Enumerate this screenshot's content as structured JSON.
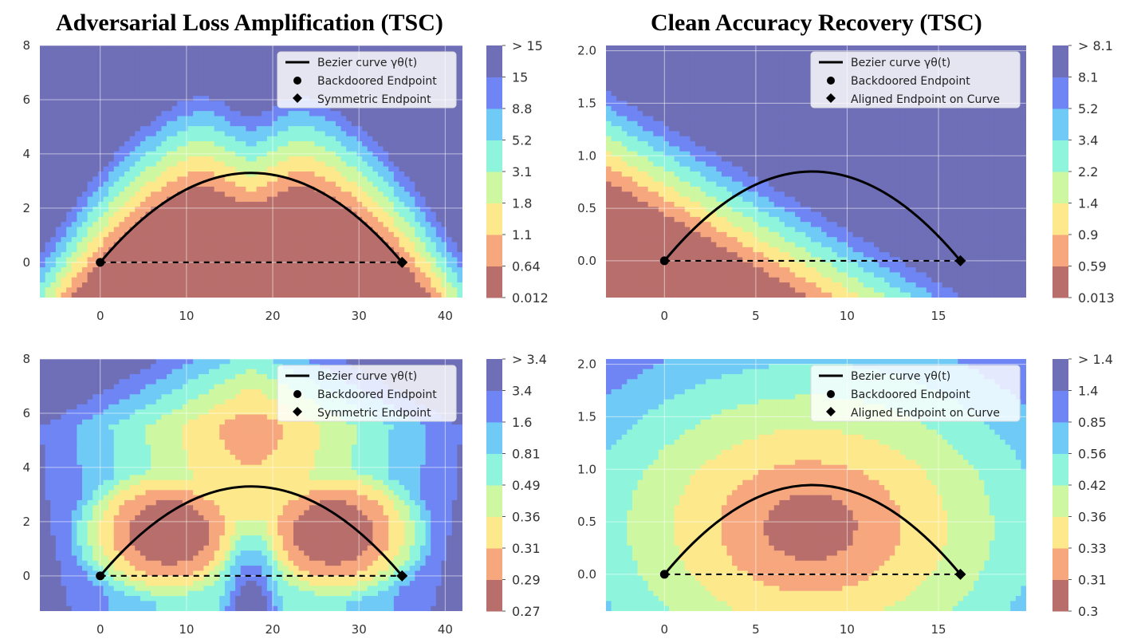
{
  "titles": [
    "Adversarial Loss Amplification (TSC)",
    "Clean Accuracy Recovery (TSC)"
  ],
  "chart_data": [
    {
      "type": "contour",
      "title": "Adversarial Loss Amplification (TSC)",
      "xlim": [
        -7,
        42
      ],
      "ylim": [
        -1.3,
        8
      ],
      "xticks": [
        0,
        10,
        20,
        30,
        40
      ],
      "yticks": [
        0,
        2,
        4,
        6,
        8
      ],
      "colorbar_levels": [
        "0.012",
        "0.64",
        "1.1",
        "1.8",
        "3.1",
        "5.2",
        "8.8",
        "15",
        "> 15"
      ],
      "legend": [
        "Bezier curve γθ(t)",
        "Backdoored Endpoint",
        "Symmetric Endpoint"
      ],
      "legend_position": "top-right",
      "curve": {
        "start": [
          0,
          0
        ],
        "end": [
          35,
          0
        ],
        "peak": [
          17.5,
          3.3
        ]
      },
      "grid": true
    },
    {
      "type": "contour",
      "title": "Clean Accuracy Recovery (TSC)",
      "xlim": [
        -3.2,
        19.8
      ],
      "ylim": [
        -0.35,
        2.05
      ],
      "xticks": [
        0,
        5,
        10,
        15
      ],
      "yticks": [
        0.0,
        0.5,
        1.0,
        1.5,
        2.0
      ],
      "colorbar_levels": [
        "0.013",
        "0.59",
        "0.9",
        "1.4",
        "2.2",
        "3.4",
        "5.2",
        "8.1",
        "> 8.1"
      ],
      "legend": [
        "Bezier curve γθ(t)",
        "Backdoored Endpoint",
        "Aligned Endpoint on Curve"
      ],
      "legend_position": "top-right",
      "curve": {
        "start": [
          0,
          0
        ],
        "end": [
          16.2,
          0
        ],
        "peak": [
          8.1,
          0.85
        ]
      },
      "grid": true
    },
    {
      "type": "contour",
      "title": "",
      "xlim": [
        -7,
        42
      ],
      "ylim": [
        -1.3,
        8
      ],
      "xticks": [
        0,
        10,
        20,
        30,
        40
      ],
      "yticks": [
        0,
        2,
        4,
        6,
        8
      ],
      "colorbar_levels": [
        "0.27",
        "0.29",
        "0.31",
        "0.36",
        "0.49",
        "0.81",
        "1.6",
        "3.4",
        "> 3.4"
      ],
      "legend": [
        "Bezier curve γθ(t)",
        "Backdoored Endpoint",
        "Symmetric Endpoint"
      ],
      "legend_position": "top-right",
      "curve": {
        "start": [
          0,
          0
        ],
        "end": [
          35,
          0
        ],
        "peak": [
          17.5,
          3.3
        ]
      },
      "grid": true
    },
    {
      "type": "contour",
      "title": "",
      "xlim": [
        -3.2,
        19.8
      ],
      "ylim": [
        -0.35,
        2.05
      ],
      "xticks": [
        0,
        5,
        10,
        15
      ],
      "yticks": [
        0.0,
        0.5,
        1.0,
        1.5,
        2.0
      ],
      "colorbar_levels": [
        "0.3",
        "0.31",
        "0.33",
        "0.36",
        "0.42",
        "0.56",
        "0.85",
        "1.4",
        "> 1.4"
      ],
      "legend": [
        "Bezier curve γθ(t)",
        "Backdoored Endpoint",
        "Aligned Endpoint on Curve"
      ],
      "legend_position": "top-right",
      "curve": {
        "start": [
          0,
          0
        ],
        "end": [
          16.2,
          0
        ],
        "peak": [
          8.1,
          0.85
        ]
      },
      "grid": true
    }
  ],
  "colors": {
    "levels": [
      "#b86f6c",
      "#f7a77d",
      "#fde98c",
      "#cdf7a0",
      "#8ef5dc",
      "#6fcaf6",
      "#6f85f4",
      "#6f6fb8"
    ],
    "edges": [
      "#e8261f",
      "#f56b17",
      "#f3e51c",
      "#a8ee27",
      "#1df0d9",
      "#1aa9ee",
      "#2e4cf0",
      "#2727b5"
    ]
  }
}
